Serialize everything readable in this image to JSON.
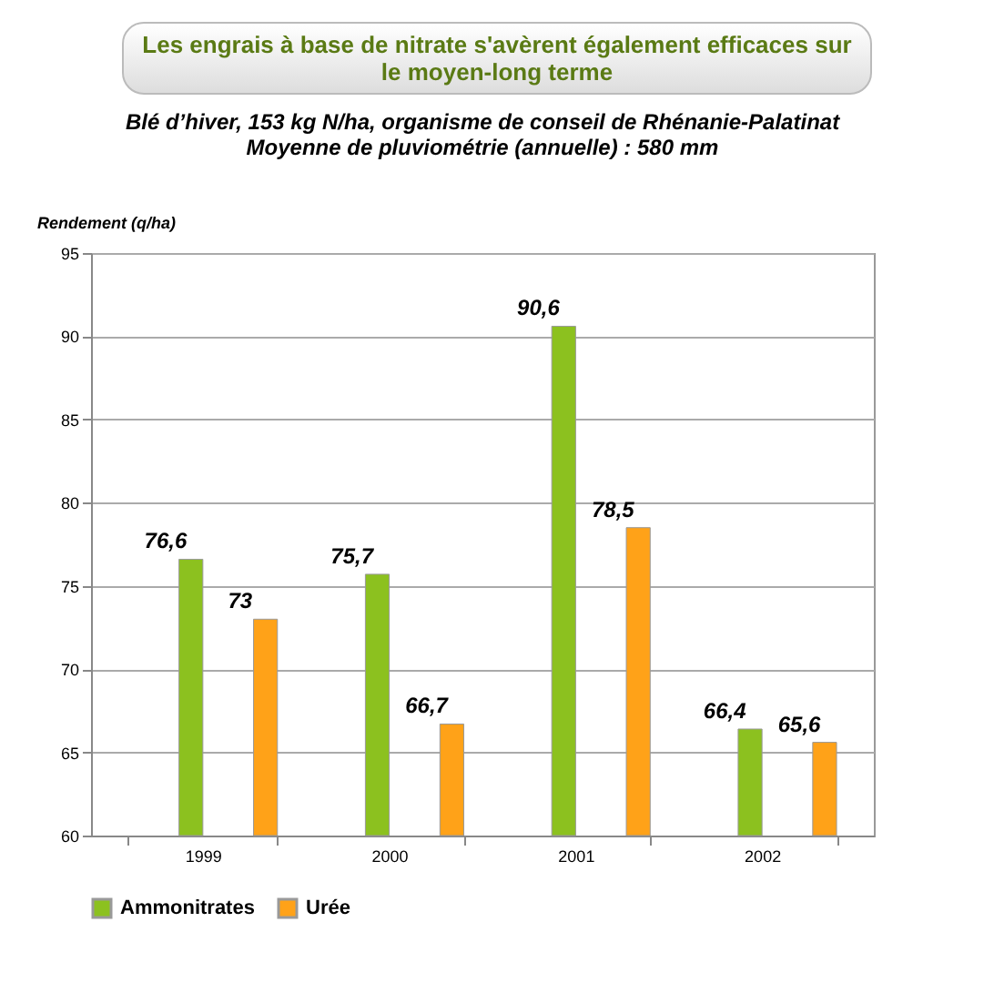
{
  "chart_data": {
    "type": "bar",
    "title": "Les engrais à base de nitrate s'avèrent également efficaces sur le moyen-long terme",
    "subtitle": "Blé d’hiver, 153 kg N/ha, organisme de conseil de Rhénanie-Palatinat\nMoyenne de pluviométrie (annuelle) : 580 mm",
    "ylabel": "Rendement (q/ha)",
    "categories": [
      "1999",
      "2000",
      "2001",
      "2002"
    ],
    "series": [
      {
        "name": "Ammonitrates",
        "color": "#8cc11f",
        "values": [
          76.6,
          75.7,
          90.6,
          66.4
        ],
        "value_labels": [
          "76,6",
          "75,7",
          "90,6",
          "66,4"
        ]
      },
      {
        "name": "Urée",
        "color": "#ffa218",
        "values": [
          73,
          66.7,
          78.5,
          65.6
        ],
        "value_labels": [
          "73",
          "66,7",
          "78,5",
          "65,6"
        ]
      }
    ],
    "ylim": [
      60,
      95
    ],
    "yticks": [
      60,
      65,
      70,
      75,
      80,
      85,
      90,
      95
    ],
    "grid": "y",
    "legend": "bottom"
  }
}
